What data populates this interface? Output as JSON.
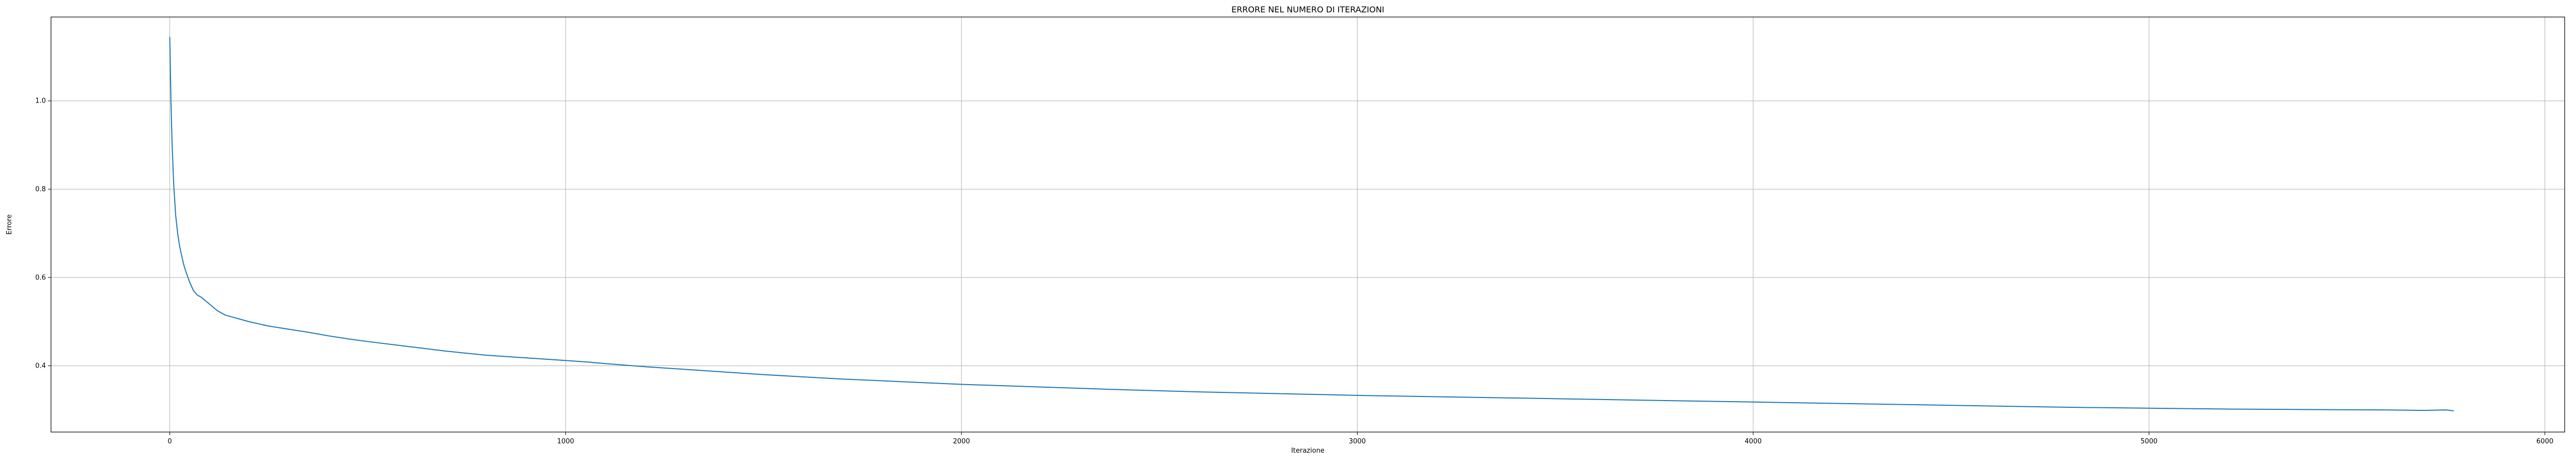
{
  "chart_data": {
    "type": "line",
    "title": "ERRORE NEL NUMERO DI ITERAZIONI",
    "xlabel": "Iterazione",
    "ylabel": "Errore",
    "xlim": [
      -300,
      6050
    ],
    "ylim": [
      0.25,
      1.19
    ],
    "grid": true,
    "x_ticks": [
      0,
      1000,
      2000,
      3000,
      4000,
      5000,
      6000
    ],
    "y_ticks": [
      0.4,
      0.6,
      0.8,
      1.0
    ],
    "x_tick_labels": [
      "0",
      "1000",
      "2000",
      "3000",
      "4000",
      "5000",
      "6000"
    ],
    "y_tick_labels": [
      "0.4",
      "0.6",
      "0.8",
      "1.0"
    ],
    "line_color": "#1f77b4",
    "series": [
      {
        "x": [
          0,
          3,
          6,
          10,
          15,
          20,
          25,
          30,
          35,
          40,
          50,
          60,
          70,
          80,
          100,
          120,
          140,
          160,
          180,
          200,
          250,
          300,
          350,
          400,
          450,
          500,
          600,
          700,
          800,
          900,
          1000,
          1050,
          1100,
          1200,
          1300,
          1400,
          1500,
          1600,
          1700,
          1800,
          1900,
          2000,
          2200,
          2400,
          2600,
          2800,
          3000,
          3200,
          3400,
          3600,
          3800,
          4000,
          4200,
          4400,
          4600,
          4800,
          5000,
          5200,
          5400,
          5600,
          5700,
          5750,
          5770
        ],
        "y": [
          1.145,
          1.0,
          0.9,
          0.81,
          0.74,
          0.7,
          0.67,
          0.65,
          0.63,
          0.615,
          0.59,
          0.57,
          0.56,
          0.555,
          0.54,
          0.525,
          0.515,
          0.51,
          0.505,
          0.5,
          0.49,
          0.483,
          0.476,
          0.468,
          0.461,
          0.455,
          0.444,
          0.433,
          0.424,
          0.418,
          0.412,
          0.409,
          0.405,
          0.398,
          0.392,
          0.386,
          0.38,
          0.375,
          0.37,
          0.366,
          0.362,
          0.358,
          0.352,
          0.346,
          0.341,
          0.337,
          0.333,
          0.33,
          0.327,
          0.324,
          0.321,
          0.318,
          0.315,
          0.312,
          0.309,
          0.306,
          0.304,
          0.302,
          0.301,
          0.3,
          0.299,
          0.3,
          0.298
        ]
      }
    ]
  }
}
